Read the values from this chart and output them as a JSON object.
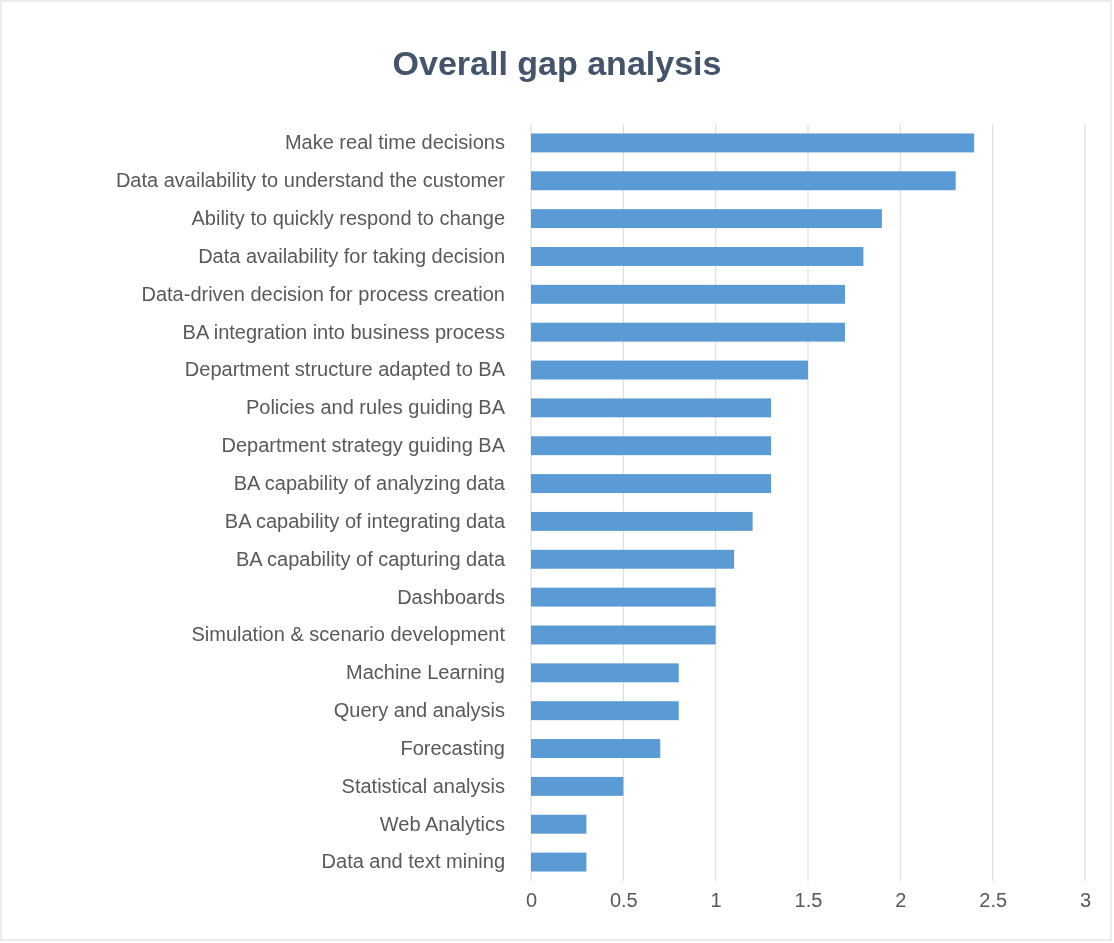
{
  "chart_data": {
    "type": "bar",
    "orientation": "horizontal",
    "title": "Overall gap analysis",
    "categories": [
      "Make real time decisions",
      "Data availability to understand the customer",
      "Ability to quickly respond to change",
      "Data availability for taking decision",
      "Data-driven decision for process creation",
      "BA integration into business process",
      "Department structure adapted to BA",
      "Policies and rules guiding BA",
      "Department strategy guiding BA",
      "BA capability of analyzing data",
      "BA capability of integrating data",
      "BA capability of capturing data",
      "Dashboards",
      "Simulation & scenario development",
      "Machine Learning",
      "Query and analysis",
      "Forecasting",
      "Statistical analysis",
      "Web Analytics",
      "Data and text mining"
    ],
    "values": [
      2.4,
      2.3,
      1.9,
      1.8,
      1.7,
      1.7,
      1.5,
      1.3,
      1.3,
      1.3,
      1.2,
      1.1,
      1.0,
      1.0,
      0.8,
      0.8,
      0.7,
      0.5,
      0.3,
      0.3
    ],
    "color": "#5b9bd5",
    "xlim": [
      0,
      3
    ],
    "xticks": [
      0,
      0.5,
      1,
      1.5,
      2,
      2.5,
      3
    ],
    "grid": "x"
  }
}
